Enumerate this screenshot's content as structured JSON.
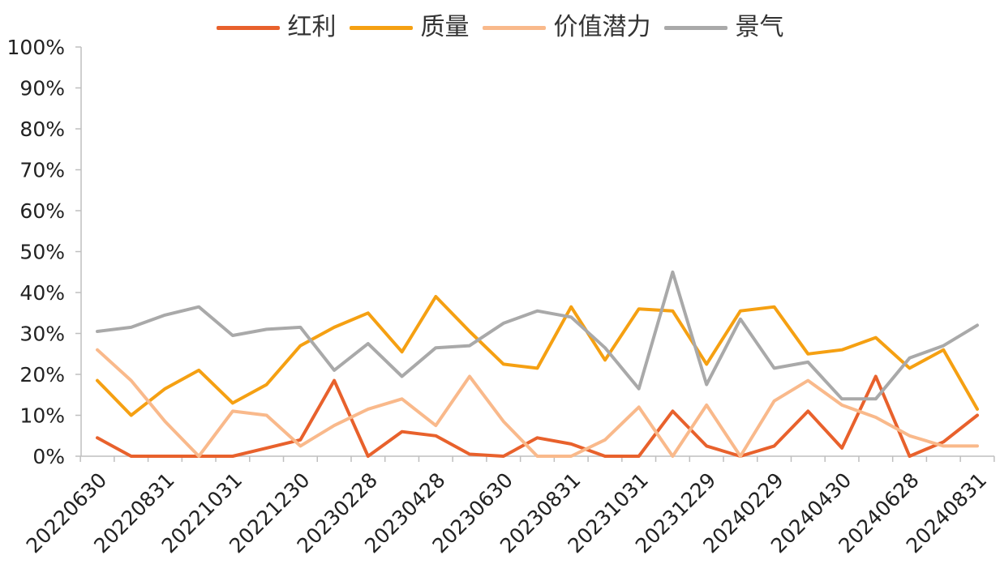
{
  "chart_data": {
    "type": "line",
    "title": "",
    "xlabel": "",
    "ylabel": "",
    "ylim": [
      0,
      100
    ],
    "y_ticks": [
      "0%",
      "10%",
      "20%",
      "30%",
      "40%",
      "50%",
      "60%",
      "70%",
      "80%",
      "90%",
      "100%"
    ],
    "x_tick_labels": [
      "20220630",
      "20220831",
      "20221031",
      "20221230",
      "20230228",
      "20230428",
      "20230630",
      "20230831",
      "20231031",
      "20231229",
      "20240229",
      "20240430",
      "20240628",
      "20240831"
    ],
    "grid": false,
    "legend_position": "top",
    "categories": [
      "20220630",
      "",
      "20220831",
      "",
      "20221031",
      "",
      "20221230",
      "",
      "20230228",
      "",
      "20230428",
      "",
      "20230630",
      "",
      "20230831",
      "",
      "20231031",
      "",
      "20231229",
      "",
      "20240229",
      "",
      "20240430",
      "",
      "20240628",
      "",
      "20240831"
    ],
    "series": [
      {
        "name": "红利",
        "color": "#E8612C",
        "values": [
          4.5,
          0,
          0,
          0,
          0,
          2,
          4,
          18.5,
          0,
          6,
          5,
          0.5,
          0,
          4.5,
          3,
          0,
          0,
          11,
          2.5,
          0,
          2.5,
          11,
          2,
          19.5,
          0,
          3.5,
          10
        ]
      },
      {
        "name": "质量",
        "color": "#F5A012",
        "values": [
          18.5,
          10,
          16.5,
          21,
          13,
          17.5,
          27,
          31.5,
          35,
          25.5,
          39,
          30.5,
          22.5,
          21.5,
          36.5,
          23.5,
          36,
          35.5,
          22.5,
          35.5,
          36.5,
          25,
          26,
          29,
          21.5,
          26,
          11.5
        ]
      },
      {
        "name": "价值潜力",
        "color": "#F9B98B",
        "values": [
          26,
          18.5,
          8.5,
          0,
          11,
          10,
          2.5,
          7.5,
          11.5,
          14,
          7.5,
          19.5,
          8.5,
          0,
          0,
          4,
          12,
          0,
          12.5,
          0,
          13.5,
          18.5,
          12.5,
          9.5,
          5,
          2.5,
          2.5
        ]
      },
      {
        "name": "景气",
        "color": "#A9A9A9",
        "values": [
          30.5,
          31.5,
          34.5,
          36.5,
          29.5,
          31,
          31.5,
          21,
          27.5,
          19.5,
          26.5,
          27,
          32.5,
          35.5,
          34,
          26.5,
          16.5,
          45,
          17.5,
          33.5,
          21.5,
          23,
          14,
          14,
          24,
          27,
          32
        ]
      }
    ]
  }
}
